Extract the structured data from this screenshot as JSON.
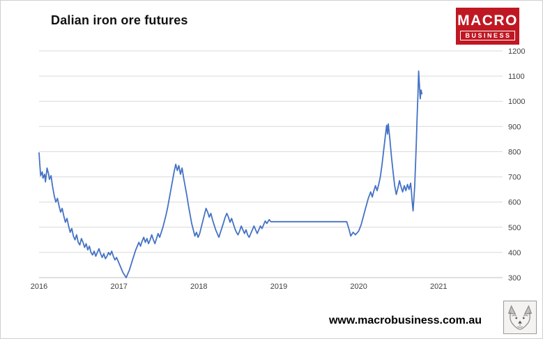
{
  "page": {
    "title": "Dalian iron ore futures",
    "website": "www.macrobusiness.com.au"
  },
  "logo": {
    "line1": "MACRO",
    "line2": "BUSINESS",
    "bg_color": "#c01823",
    "text_color": "#ffffff"
  },
  "chart_data": {
    "type": "line",
    "title": "Dalian iron ore futures",
    "xlabel": "",
    "ylabel": "",
    "xlim": [
      2016,
      2021.8
    ],
    "ylim": [
      300,
      1200
    ],
    "x_ticks": [
      2016,
      2017,
      2018,
      2019,
      2020,
      2021
    ],
    "y_ticks": [
      300,
      400,
      500,
      600,
      700,
      800,
      900,
      1000,
      1100,
      1200
    ],
    "grid": "horizontal",
    "legend": "none",
    "y_axis_side": "right",
    "series": [
      {
        "name": "Dalian iron ore futures",
        "color": "#4472c4",
        "points": [
          [
            2016.0,
            795
          ],
          [
            2016.01,
            750
          ],
          [
            2016.02,
            705
          ],
          [
            2016.04,
            720
          ],
          [
            2016.05,
            695
          ],
          [
            2016.07,
            710
          ],
          [
            2016.08,
            680
          ],
          [
            2016.1,
            735
          ],
          [
            2016.12,
            710
          ],
          [
            2016.13,
            690
          ],
          [
            2016.15,
            705
          ],
          [
            2016.17,
            660
          ],
          [
            2016.19,
            625
          ],
          [
            2016.21,
            600
          ],
          [
            2016.23,
            615
          ],
          [
            2016.25,
            585
          ],
          [
            2016.27,
            560
          ],
          [
            2016.29,
            575
          ],
          [
            2016.31,
            545
          ],
          [
            2016.33,
            520
          ],
          [
            2016.35,
            535
          ],
          [
            2016.37,
            505
          ],
          [
            2016.39,
            480
          ],
          [
            2016.41,
            495
          ],
          [
            2016.43,
            465
          ],
          [
            2016.45,
            450
          ],
          [
            2016.47,
            470
          ],
          [
            2016.49,
            440
          ],
          [
            2016.51,
            430
          ],
          [
            2016.53,
            455
          ],
          [
            2016.55,
            440
          ],
          [
            2016.57,
            420
          ],
          [
            2016.59,
            435
          ],
          [
            2016.61,
            410
          ],
          [
            2016.63,
            425
          ],
          [
            2016.65,
            400
          ],
          [
            2016.67,
            390
          ],
          [
            2016.69,
            405
          ],
          [
            2016.71,
            385
          ],
          [
            2016.73,
            400
          ],
          [
            2016.75,
            415
          ],
          [
            2016.77,
            395
          ],
          [
            2016.79,
            380
          ],
          [
            2016.81,
            395
          ],
          [
            2016.83,
            375
          ],
          [
            2016.85,
            385
          ],
          [
            2016.87,
            400
          ],
          [
            2016.89,
            390
          ],
          [
            2016.91,
            405
          ],
          [
            2016.93,
            385
          ],
          [
            2016.95,
            370
          ],
          [
            2016.97,
            380
          ],
          [
            2016.99,
            365
          ],
          [
            2017.01,
            350
          ],
          [
            2017.03,
            335
          ],
          [
            2017.05,
            320
          ],
          [
            2017.07,
            310
          ],
          [
            2017.09,
            300
          ],
          [
            2017.11,
            315
          ],
          [
            2017.13,
            330
          ],
          [
            2017.15,
            350
          ],
          [
            2017.17,
            370
          ],
          [
            2017.19,
            390
          ],
          [
            2017.21,
            410
          ],
          [
            2017.23,
            425
          ],
          [
            2017.25,
            440
          ],
          [
            2017.27,
            425
          ],
          [
            2017.29,
            445
          ],
          [
            2017.31,
            460
          ],
          [
            2017.33,
            440
          ],
          [
            2017.35,
            455
          ],
          [
            2017.37,
            435
          ],
          [
            2017.39,
            450
          ],
          [
            2017.41,
            470
          ],
          [
            2017.43,
            450
          ],
          [
            2017.45,
            435
          ],
          [
            2017.47,
            455
          ],
          [
            2017.49,
            475
          ],
          [
            2017.51,
            460
          ],
          [
            2017.53,
            480
          ],
          [
            2017.55,
            500
          ],
          [
            2017.57,
            525
          ],
          [
            2017.59,
            550
          ],
          [
            2017.61,
            580
          ],
          [
            2017.63,
            615
          ],
          [
            2017.65,
            650
          ],
          [
            2017.67,
            685
          ],
          [
            2017.69,
            720
          ],
          [
            2017.71,
            750
          ],
          [
            2017.73,
            725
          ],
          [
            2017.75,
            745
          ],
          [
            2017.77,
            710
          ],
          [
            2017.79,
            735
          ],
          [
            2017.81,
            695
          ],
          [
            2017.83,
            660
          ],
          [
            2017.85,
            625
          ],
          [
            2017.87,
            585
          ],
          [
            2017.89,
            550
          ],
          [
            2017.91,
            515
          ],
          [
            2017.93,
            490
          ],
          [
            2017.95,
            465
          ],
          [
            2017.97,
            480
          ],
          [
            2017.99,
            460
          ],
          [
            2018.01,
            475
          ],
          [
            2018.03,
            500
          ],
          [
            2018.05,
            525
          ],
          [
            2018.07,
            550
          ],
          [
            2018.09,
            575
          ],
          [
            2018.11,
            560
          ],
          [
            2018.13,
            540
          ],
          [
            2018.15,
            555
          ],
          [
            2018.17,
            530
          ],
          [
            2018.19,
            510
          ],
          [
            2018.21,
            490
          ],
          [
            2018.23,
            475
          ],
          [
            2018.25,
            460
          ],
          [
            2018.27,
            480
          ],
          [
            2018.29,
            500
          ],
          [
            2018.31,
            520
          ],
          [
            2018.33,
            540
          ],
          [
            2018.35,
            555
          ],
          [
            2018.37,
            540
          ],
          [
            2018.39,
            520
          ],
          [
            2018.41,
            535
          ],
          [
            2018.43,
            515
          ],
          [
            2018.45,
            495
          ],
          [
            2018.47,
            480
          ],
          [
            2018.49,
            470
          ],
          [
            2018.51,
            485
          ],
          [
            2018.53,
            505
          ],
          [
            2018.55,
            490
          ],
          [
            2018.57,
            475
          ],
          [
            2018.59,
            490
          ],
          [
            2018.61,
            470
          ],
          [
            2018.63,
            460
          ],
          [
            2018.65,
            475
          ],
          [
            2018.67,
            490
          ],
          [
            2018.69,
            505
          ],
          [
            2018.71,
            490
          ],
          [
            2018.73,
            475
          ],
          [
            2018.75,
            490
          ],
          [
            2018.77,
            505
          ],
          [
            2018.79,
            495
          ],
          [
            2018.81,
            510
          ],
          [
            2018.83,
            525
          ],
          [
            2018.85,
            515
          ],
          [
            2018.88,
            530
          ],
          [
            2018.9,
            522
          ],
          [
            2019.85,
            522
          ],
          [
            2019.88,
            490
          ],
          [
            2019.9,
            465
          ],
          [
            2019.93,
            480
          ],
          [
            2019.96,
            470
          ],
          [
            2020.0,
            485
          ],
          [
            2020.03,
            510
          ],
          [
            2020.06,
            545
          ],
          [
            2020.09,
            580
          ],
          [
            2020.12,
            615
          ],
          [
            2020.15,
            640
          ],
          [
            2020.17,
            620
          ],
          [
            2020.19,
            645
          ],
          [
            2020.21,
            665
          ],
          [
            2020.23,
            645
          ],
          [
            2020.25,
            670
          ],
          [
            2020.27,
            700
          ],
          [
            2020.29,
            745
          ],
          [
            2020.31,
            800
          ],
          [
            2020.33,
            855
          ],
          [
            2020.35,
            905
          ],
          [
            2020.36,
            870
          ],
          [
            2020.37,
            910
          ],
          [
            2020.39,
            850
          ],
          [
            2020.41,
            780
          ],
          [
            2020.43,
            720
          ],
          [
            2020.45,
            665
          ],
          [
            2020.47,
            630
          ],
          [
            2020.49,
            655
          ],
          [
            2020.51,
            685
          ],
          [
            2020.53,
            660
          ],
          [
            2020.55,
            640
          ],
          [
            2020.57,
            665
          ],
          [
            2020.59,
            645
          ],
          [
            2020.61,
            670
          ],
          [
            2020.63,
            650
          ],
          [
            2020.65,
            675
          ],
          [
            2020.66,
            640
          ],
          [
            2020.67,
            600
          ],
          [
            2020.68,
            565
          ],
          [
            2020.69,
            610
          ],
          [
            2020.7,
            660
          ],
          [
            2020.71,
            740
          ],
          [
            2020.72,
            830
          ],
          [
            2020.73,
            930
          ],
          [
            2020.74,
            1020
          ],
          [
            2020.75,
            1120
          ],
          [
            2020.76,
            1060
          ],
          [
            2020.77,
            1010
          ],
          [
            2020.78,
            1045
          ],
          [
            2020.79,
            1030
          ]
        ]
      }
    ]
  }
}
